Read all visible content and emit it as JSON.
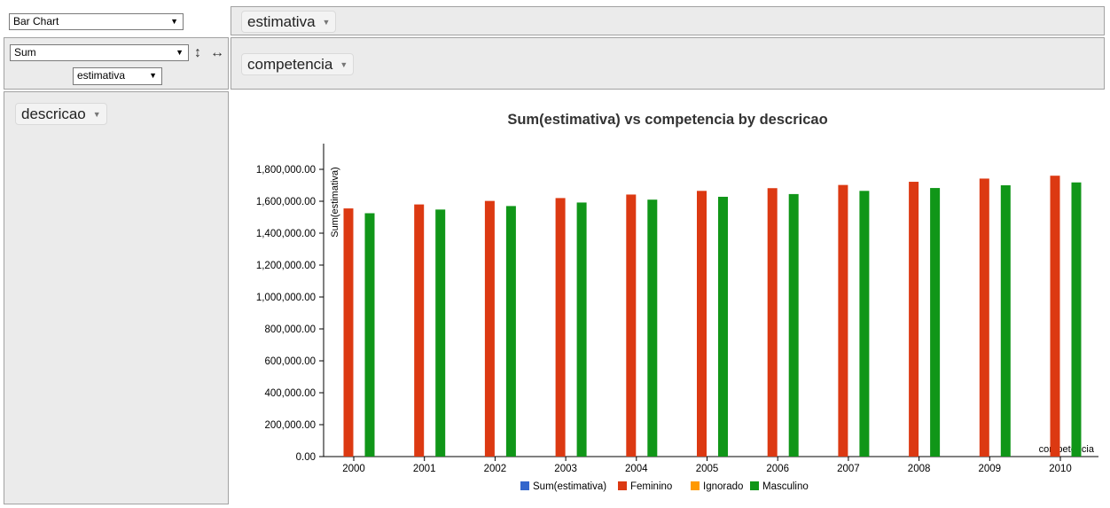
{
  "renderer": {
    "selected": "Bar Chart"
  },
  "aggregator": {
    "selected": "Sum",
    "attribute": "estimativa"
  },
  "icons": {
    "row_sort": "vertical-arrow-icon",
    "col_sort": "horizontal-arrow-icon"
  },
  "column_attr": {
    "label": "estimativa"
  },
  "col_field": {
    "label": "competencia"
  },
  "row_field": {
    "label": "descricao"
  },
  "colors": {
    "panel_bg": "#ebebeb",
    "Sum(estimativa)": "#3366cc",
    "Feminino": "#dc3912",
    "Ignorado": "#ff9900",
    "Masculino": "#109618"
  },
  "chart_data": {
    "type": "bar",
    "title": "Sum(estimativa) vs competencia by descricao",
    "xlabel": "competencia",
    "ylabel": "Sum(estimativa)",
    "ylim": [
      0,
      1950000
    ],
    "yticks": [
      "0.00",
      "200,000.00",
      "400,000.00",
      "600,000.00",
      "800,000.00",
      "1,000,000.00",
      "1,200,000.00",
      "1,400,000.00",
      "1,600,000.00",
      "1,800,000.00"
    ],
    "categories": [
      "2000",
      "2001",
      "2002",
      "2003",
      "2004",
      "2005",
      "2006",
      "2007",
      "2008",
      "2009",
      "2010"
    ],
    "series": [
      {
        "name": "Sum(estimativa)",
        "values": [
          0,
          0,
          0,
          0,
          0,
          0,
          0,
          0,
          0,
          0,
          0
        ]
      },
      {
        "name": "Feminino",
        "values": [
          1555000,
          1580000,
          1602000,
          1620000,
          1642000,
          1665000,
          1682000,
          1702000,
          1722000,
          1742000,
          1760000
        ]
      },
      {
        "name": "Ignorado",
        "values": [
          0,
          0,
          0,
          0,
          0,
          0,
          0,
          0,
          0,
          0,
          0
        ]
      },
      {
        "name": "Masculino",
        "values": [
          1525000,
          1548000,
          1570000,
          1592000,
          1610000,
          1628000,
          1645000,
          1665000,
          1683000,
          1700000,
          1718000
        ]
      }
    ],
    "legend": "bottom"
  }
}
